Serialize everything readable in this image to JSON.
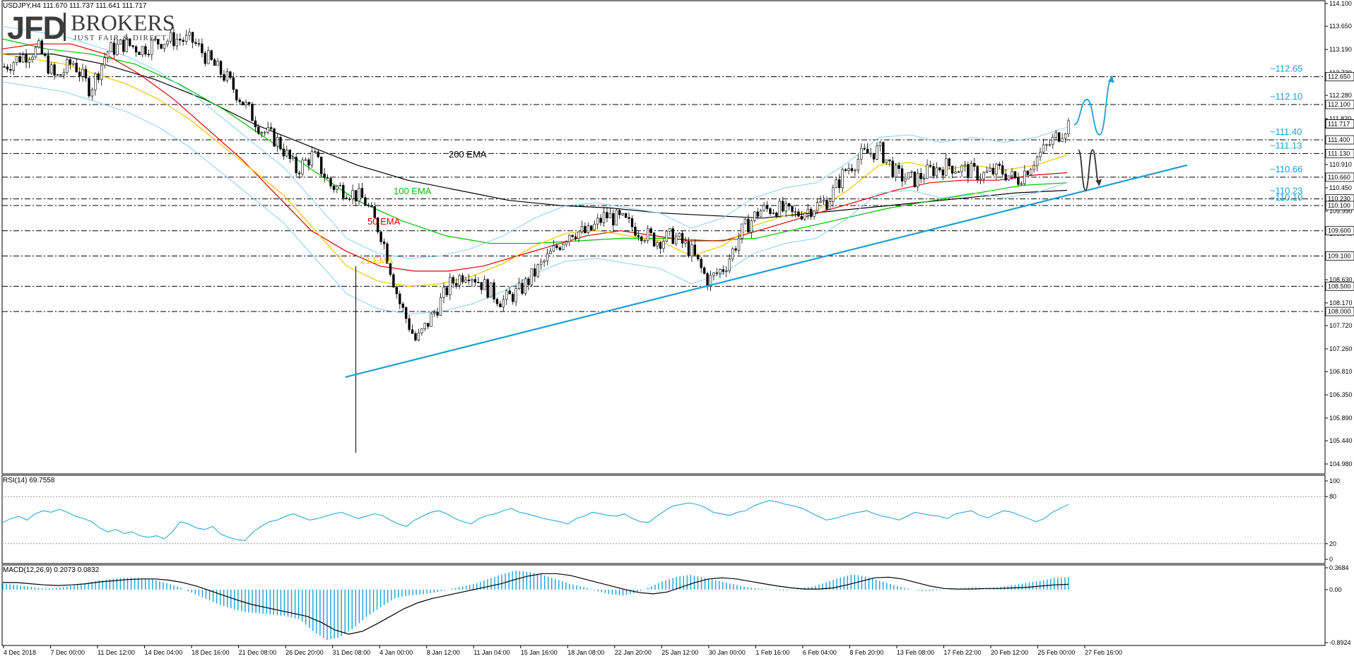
{
  "header": {
    "symbol_info": "USDJPY,H4  111.670 111.737 111.641 111.717"
  },
  "logo": {
    "main": "JFD",
    "name": "BROKERS",
    "tagline": "JUST FAIR & DIRECT"
  },
  "indicators": {
    "rsi_title": "RSI(14) 69.7558",
    "macd_title": "MACD(12,26,9) 0.2073 0.0832"
  },
  "chart_data": [
    {
      "type": "candlestick",
      "title": "USDJPY,H4",
      "price_axis_ticks": [
        "114.100",
        "113.650",
        "113.190",
        "112.730",
        "112.280",
        "111.820",
        "111.360",
        "110.910",
        "110.450",
        "109.990",
        "109.540",
        "109.080",
        "108.630",
        "108.170",
        "107.720",
        "107.260",
        "106.810",
        "106.350",
        "105.890",
        "105.440",
        "104.980"
      ],
      "ylim": [
        104.98,
        114.1
      ],
      "time_labels": [
        "4 Dec 2018",
        "7 Dec 00:00",
        "11 Dec 12:00",
        "14 Dec 04:00",
        "18 Dec 16:00",
        "21 Dec 08:00",
        "26 Dec 20:00",
        "31 Dec 08:00",
        "4 Jan 00:00",
        "8 Jan 12:00",
        "11 Jan 04:00",
        "15 Jan 16:00",
        "18 Jan 08:00",
        "22 Jan 20:00",
        "25 Jan 12:00",
        "30 Jan 00:00",
        "1 Feb 16:00",
        "6 Feb 04:00",
        "8 Feb 20:00",
        "13 Feb 08:00",
        "17 Feb 22:00",
        "20 Feb 12:00",
        "25 Feb 00:00",
        "27 Feb 16:00"
      ],
      "close_path": [
        112.85,
        113.05,
        113.2,
        112.6,
        112.95,
        112.4,
        113.15,
        113.3,
        113.2,
        113.35,
        113.4,
        113.35,
        112.95,
        112.6,
        112.1,
        111.6,
        111.35,
        110.8,
        111.1,
        110.5,
        110.4,
        110.2,
        109.5,
        108.2,
        107.4,
        107.95,
        108.55,
        108.8,
        108.5,
        108.2,
        108.4,
        108.8,
        109.2,
        109.6,
        109.55,
        109.9,
        109.8,
        109.6,
        109.4,
        109.5,
        109.2,
        108.6,
        108.9,
        109.6,
        110.0,
        110.05,
        109.9,
        110.05,
        110.2,
        110.8,
        111.1,
        111.2,
        110.7,
        110.6,
        110.8,
        110.9,
        110.8,
        110.7,
        110.8,
        110.6,
        111.0,
        111.35,
        111.72
      ],
      "ema_21": [
        113.1,
        113.0,
        112.9,
        112.7,
        112.5,
        112.2,
        111.8,
        111.3,
        110.8,
        110.3,
        109.6,
        108.9,
        108.6,
        108.5,
        108.55,
        108.7,
        108.95,
        109.3,
        109.55,
        109.6,
        109.5,
        109.4,
        109.1,
        109.3,
        109.7,
        109.9,
        110.0,
        110.4,
        110.9,
        110.95,
        110.8,
        110.9,
        110.8,
        110.9,
        111.1
      ],
      "ema_50": [
        113.2,
        113.3,
        113.3,
        113.1,
        112.7,
        112.2,
        111.6,
        111.0,
        110.3,
        109.6,
        109.2,
        108.9,
        108.8,
        108.8,
        108.9,
        109.1,
        109.3,
        109.5,
        109.6,
        109.5,
        109.4,
        109.4,
        109.6,
        109.8,
        110.0,
        110.2,
        110.4,
        110.55,
        110.6,
        110.6,
        110.7,
        110.75
      ],
      "ema_100": [
        113.4,
        113.2,
        113.1,
        112.9,
        112.5,
        112.0,
        111.4,
        110.8,
        110.2,
        109.8,
        109.5,
        109.35,
        109.35,
        109.4,
        109.45,
        109.45,
        109.4,
        109.45,
        109.65,
        109.85,
        110.05,
        110.2,
        110.35,
        110.5,
        110.55
      ],
      "ema_200": [
        113.1,
        113.1,
        112.9,
        112.6,
        112.2,
        111.7,
        111.3,
        110.9,
        110.6,
        110.4,
        110.2,
        110.1,
        110.05,
        109.95,
        109.9,
        109.85,
        109.95,
        110.05,
        110.15,
        110.25,
        110.35,
        110.4
      ],
      "series_labels": [
        "200 EMA",
        "100 EMA",
        "50 EMA",
        "21 EMA"
      ],
      "trendline": {
        "from": [
          "31 Dec 08:00",
          106.7
        ],
        "to": [
          "27 Feb 16:00",
          110.9
        ]
      },
      "key_levels": [
        {
          "price": 112.65,
          "box_label": "112.650",
          "annotation": "~112.65"
        },
        {
          "price": 112.1,
          "box_label": "112.100",
          "annotation": "~112.10"
        },
        {
          "price": 111.4,
          "box_label": "111.400",
          "annotation": "~111.40"
        },
        {
          "price": 111.13,
          "box_label": "111.130",
          "annotation": "~111.13"
        },
        {
          "price": 110.66,
          "box_label": "110.660",
          "annotation": "~110.66"
        },
        {
          "price": 110.23,
          "box_label": "110.230",
          "annotation": "~110.23"
        },
        {
          "price": 110.1,
          "box_label": "110.100",
          "annotation": "~110.10"
        },
        {
          "price": 109.6,
          "box_label": "109.600",
          "annotation": ""
        },
        {
          "price": 109.1,
          "box_label": "109.100",
          "annotation": ""
        },
        {
          "price": 108.5,
          "box_label": "108.500",
          "annotation": ""
        },
        {
          "price": 108.0,
          "box_label": "108.000",
          "annotation": ""
        }
      ],
      "current_price": {
        "price": 111.717,
        "box_label": "111.717"
      },
      "scenarios": [
        {
          "name": "bullish",
          "path": [
            111.7,
            112.2,
            111.5,
            112.65
          ]
        },
        {
          "name": "bearish",
          "path": [
            111.2,
            110.4,
            111.2,
            110.5
          ]
        }
      ],
      "colors": {
        "ema_21": "#f5c400",
        "ema_50": "#e00000",
        "ema_100": "#00c000",
        "ema_200": "#000000",
        "bollinger": "#87cefa",
        "trendline": "#1a9fd6",
        "annotations": "#1aa0d8",
        "candles": "#000000"
      }
    },
    {
      "type": "line",
      "title": "RSI(14) 69.7558",
      "ylim": [
        0,
        100
      ],
      "tick_labels": [
        "100",
        "80",
        "20",
        "0"
      ],
      "levels": [
        80,
        20
      ],
      "values": [
        47,
        52,
        55,
        50,
        58,
        62,
        60,
        64,
        60,
        55,
        52,
        48,
        40,
        35,
        38,
        33,
        35,
        30,
        28,
        30,
        26,
        35,
        48,
        45,
        40,
        38,
        42,
        32,
        28,
        25,
        24,
        35,
        42,
        48,
        50,
        55,
        58,
        54,
        50,
        52,
        55,
        58,
        60,
        56,
        52,
        55,
        58,
        56,
        50,
        45,
        42,
        50,
        55,
        60,
        62,
        58,
        52,
        48,
        45,
        52,
        56,
        58,
        62,
        65,
        60,
        58,
        55,
        52,
        50,
        48,
        45,
        52,
        55,
        60,
        58,
        56,
        55,
        58,
        52,
        48,
        47,
        55,
        62,
        68,
        70,
        72,
        70,
        66,
        60,
        58,
        56,
        60,
        62,
        68,
        72,
        75,
        73,
        70,
        68,
        65,
        60,
        55,
        50,
        52,
        55,
        58,
        60,
        62,
        58,
        55,
        53,
        50,
        55,
        60,
        58,
        56,
        55,
        52,
        58,
        60,
        62,
        56,
        53,
        58,
        62,
        60,
        56,
        52,
        48,
        52,
        60,
        65,
        70
      ]
    },
    {
      "type": "histogram",
      "title": "MACD(12,26,9) 0.2073 0.0832",
      "ylim": [
        -0.8924,
        0.3684
      ],
      "tick_labels": [
        "0.3684",
        "0.00",
        "-0.8924"
      ],
      "histogram": [
        0.1,
        0.08,
        0.05,
        0.02,
        0.03,
        0.06,
        0.1,
        0.15,
        0.18,
        0.2,
        0.2,
        0.18,
        0.12,
        0.05,
        -0.05,
        -0.15,
        -0.25,
        -0.32,
        -0.38,
        -0.4,
        -0.42,
        -0.45,
        -0.5,
        -0.7,
        -0.85,
        -0.8,
        -0.65,
        -0.45,
        -0.3,
        -0.15,
        -0.1,
        -0.08,
        -0.05,
        0.0,
        0.05,
        0.1,
        0.18,
        0.26,
        0.32,
        0.3,
        0.25,
        0.18,
        0.1,
        0.05,
        -0.02,
        -0.08,
        -0.1,
        -0.05,
        0.05,
        0.15,
        0.22,
        0.25,
        0.2,
        0.15,
        0.1,
        0.05,
        0.02,
        0.0,
        -0.02,
        0.02,
        0.05,
        0.12,
        0.2,
        0.26,
        0.22,
        0.15,
        0.08,
        0.02,
        -0.02,
        -0.02,
        0.0,
        0.02,
        0.04,
        0.02,
        0.05,
        0.08,
        0.12,
        0.15,
        0.2,
        0.21
      ],
      "signal": [
        0.12,
        0.12,
        0.1,
        0.08,
        0.07,
        0.08,
        0.1,
        0.13,
        0.15,
        0.17,
        0.18,
        0.18,
        0.16,
        0.12,
        0.06,
        -0.02,
        -0.1,
        -0.18,
        -0.25,
        -0.3,
        -0.35,
        -0.4,
        -0.45,
        -0.55,
        -0.68,
        -0.75,
        -0.7,
        -0.58,
        -0.45,
        -0.32,
        -0.22,
        -0.15,
        -0.1,
        -0.05,
        0.0,
        0.05,
        0.1,
        0.17,
        0.23,
        0.27,
        0.27,
        0.24,
        0.18,
        0.12,
        0.06,
        0.0,
        -0.05,
        -0.07,
        -0.04,
        0.04,
        0.12,
        0.18,
        0.2,
        0.18,
        0.14,
        0.1,
        0.06,
        0.03,
        0.01,
        0.01,
        0.03,
        0.08,
        0.14,
        0.2,
        0.21,
        0.18,
        0.12,
        0.06,
        0.02,
        0.01,
        0.01,
        0.02,
        0.02,
        0.03,
        0.04,
        0.06,
        0.08,
        0.09
      ]
    }
  ]
}
